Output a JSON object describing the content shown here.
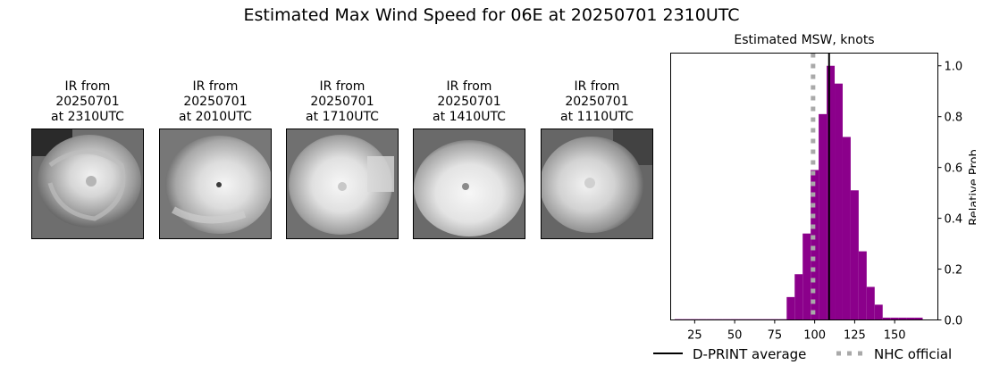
{
  "figure": {
    "title": "Estimated Max Wind Speed for 06E at 20250701 2310UTC"
  },
  "ir_panels": [
    {
      "line1": "IR from",
      "line2": "20250701",
      "line3": "at 2310UTC"
    },
    {
      "line1": "IR from",
      "line2": "20250701",
      "line3": "at 2010UTC"
    },
    {
      "line1": "IR from",
      "line2": "20250701",
      "line3": "at 1710UTC"
    },
    {
      "line1": "IR from",
      "line2": "20250701",
      "line3": "at 1410UTC"
    },
    {
      "line1": "IR from",
      "line2": "20250701",
      "line3": "at 1110UTC"
    }
  ],
  "chart_data": {
    "type": "bar",
    "title": "Estimated MSW, knots",
    "xlabel": "",
    "ylabel": "Relative Prob",
    "xlim": [
      10,
      177
    ],
    "ylim": [
      0,
      1.05
    ],
    "xticks": [
      25,
      50,
      75,
      100,
      125,
      150
    ],
    "yticks": [
      0.0,
      0.2,
      0.4,
      0.6,
      0.8,
      1.0
    ],
    "ytick_labels": [
      "0.0",
      "0.2",
      "0.4",
      "0.6",
      "0.8",
      "1.0"
    ],
    "y_axis_side": "right",
    "bin_width": 5,
    "bins": [
      {
        "x": 15,
        "value": 0.003
      },
      {
        "x": 20,
        "value": 0.003
      },
      {
        "x": 25,
        "value": 0.003
      },
      {
        "x": 30,
        "value": 0.003
      },
      {
        "x": 35,
        "value": 0.003
      },
      {
        "x": 40,
        "value": 0.003
      },
      {
        "x": 45,
        "value": 0.003
      },
      {
        "x": 50,
        "value": 0.003
      },
      {
        "x": 55,
        "value": 0.003
      },
      {
        "x": 60,
        "value": 0.003
      },
      {
        "x": 65,
        "value": 0.003
      },
      {
        "x": 70,
        "value": 0.003
      },
      {
        "x": 75,
        "value": 0.003
      },
      {
        "x": 80,
        "value": 0.003
      },
      {
        "x": 85,
        "value": 0.09
      },
      {
        "x": 90,
        "value": 0.18
      },
      {
        "x": 95,
        "value": 0.34
      },
      {
        "x": 100,
        "value": 0.59
      },
      {
        "x": 105,
        "value": 0.81
      },
      {
        "x": 110,
        "value": 1.0
      },
      {
        "x": 115,
        "value": 0.93
      },
      {
        "x": 120,
        "value": 0.72
      },
      {
        "x": 125,
        "value": 0.51
      },
      {
        "x": 130,
        "value": 0.27
      },
      {
        "x": 135,
        "value": 0.13
      },
      {
        "x": 140,
        "value": 0.06
      },
      {
        "x": 145,
        "value": 0.009
      },
      {
        "x": 150,
        "value": 0.009
      },
      {
        "x": 155,
        "value": 0.009
      },
      {
        "x": 160,
        "value": 0.009
      },
      {
        "x": 165,
        "value": 0.009
      }
    ],
    "bar_color": "#8b008b",
    "lines": [
      {
        "name": "D-PRINT average",
        "x": 109,
        "color": "#000000",
        "style": "solid"
      },
      {
        "name": "NHC official",
        "x": 99,
        "color": "#a9a9a9",
        "style": "dotted"
      }
    ],
    "legend_position": "bottom"
  }
}
